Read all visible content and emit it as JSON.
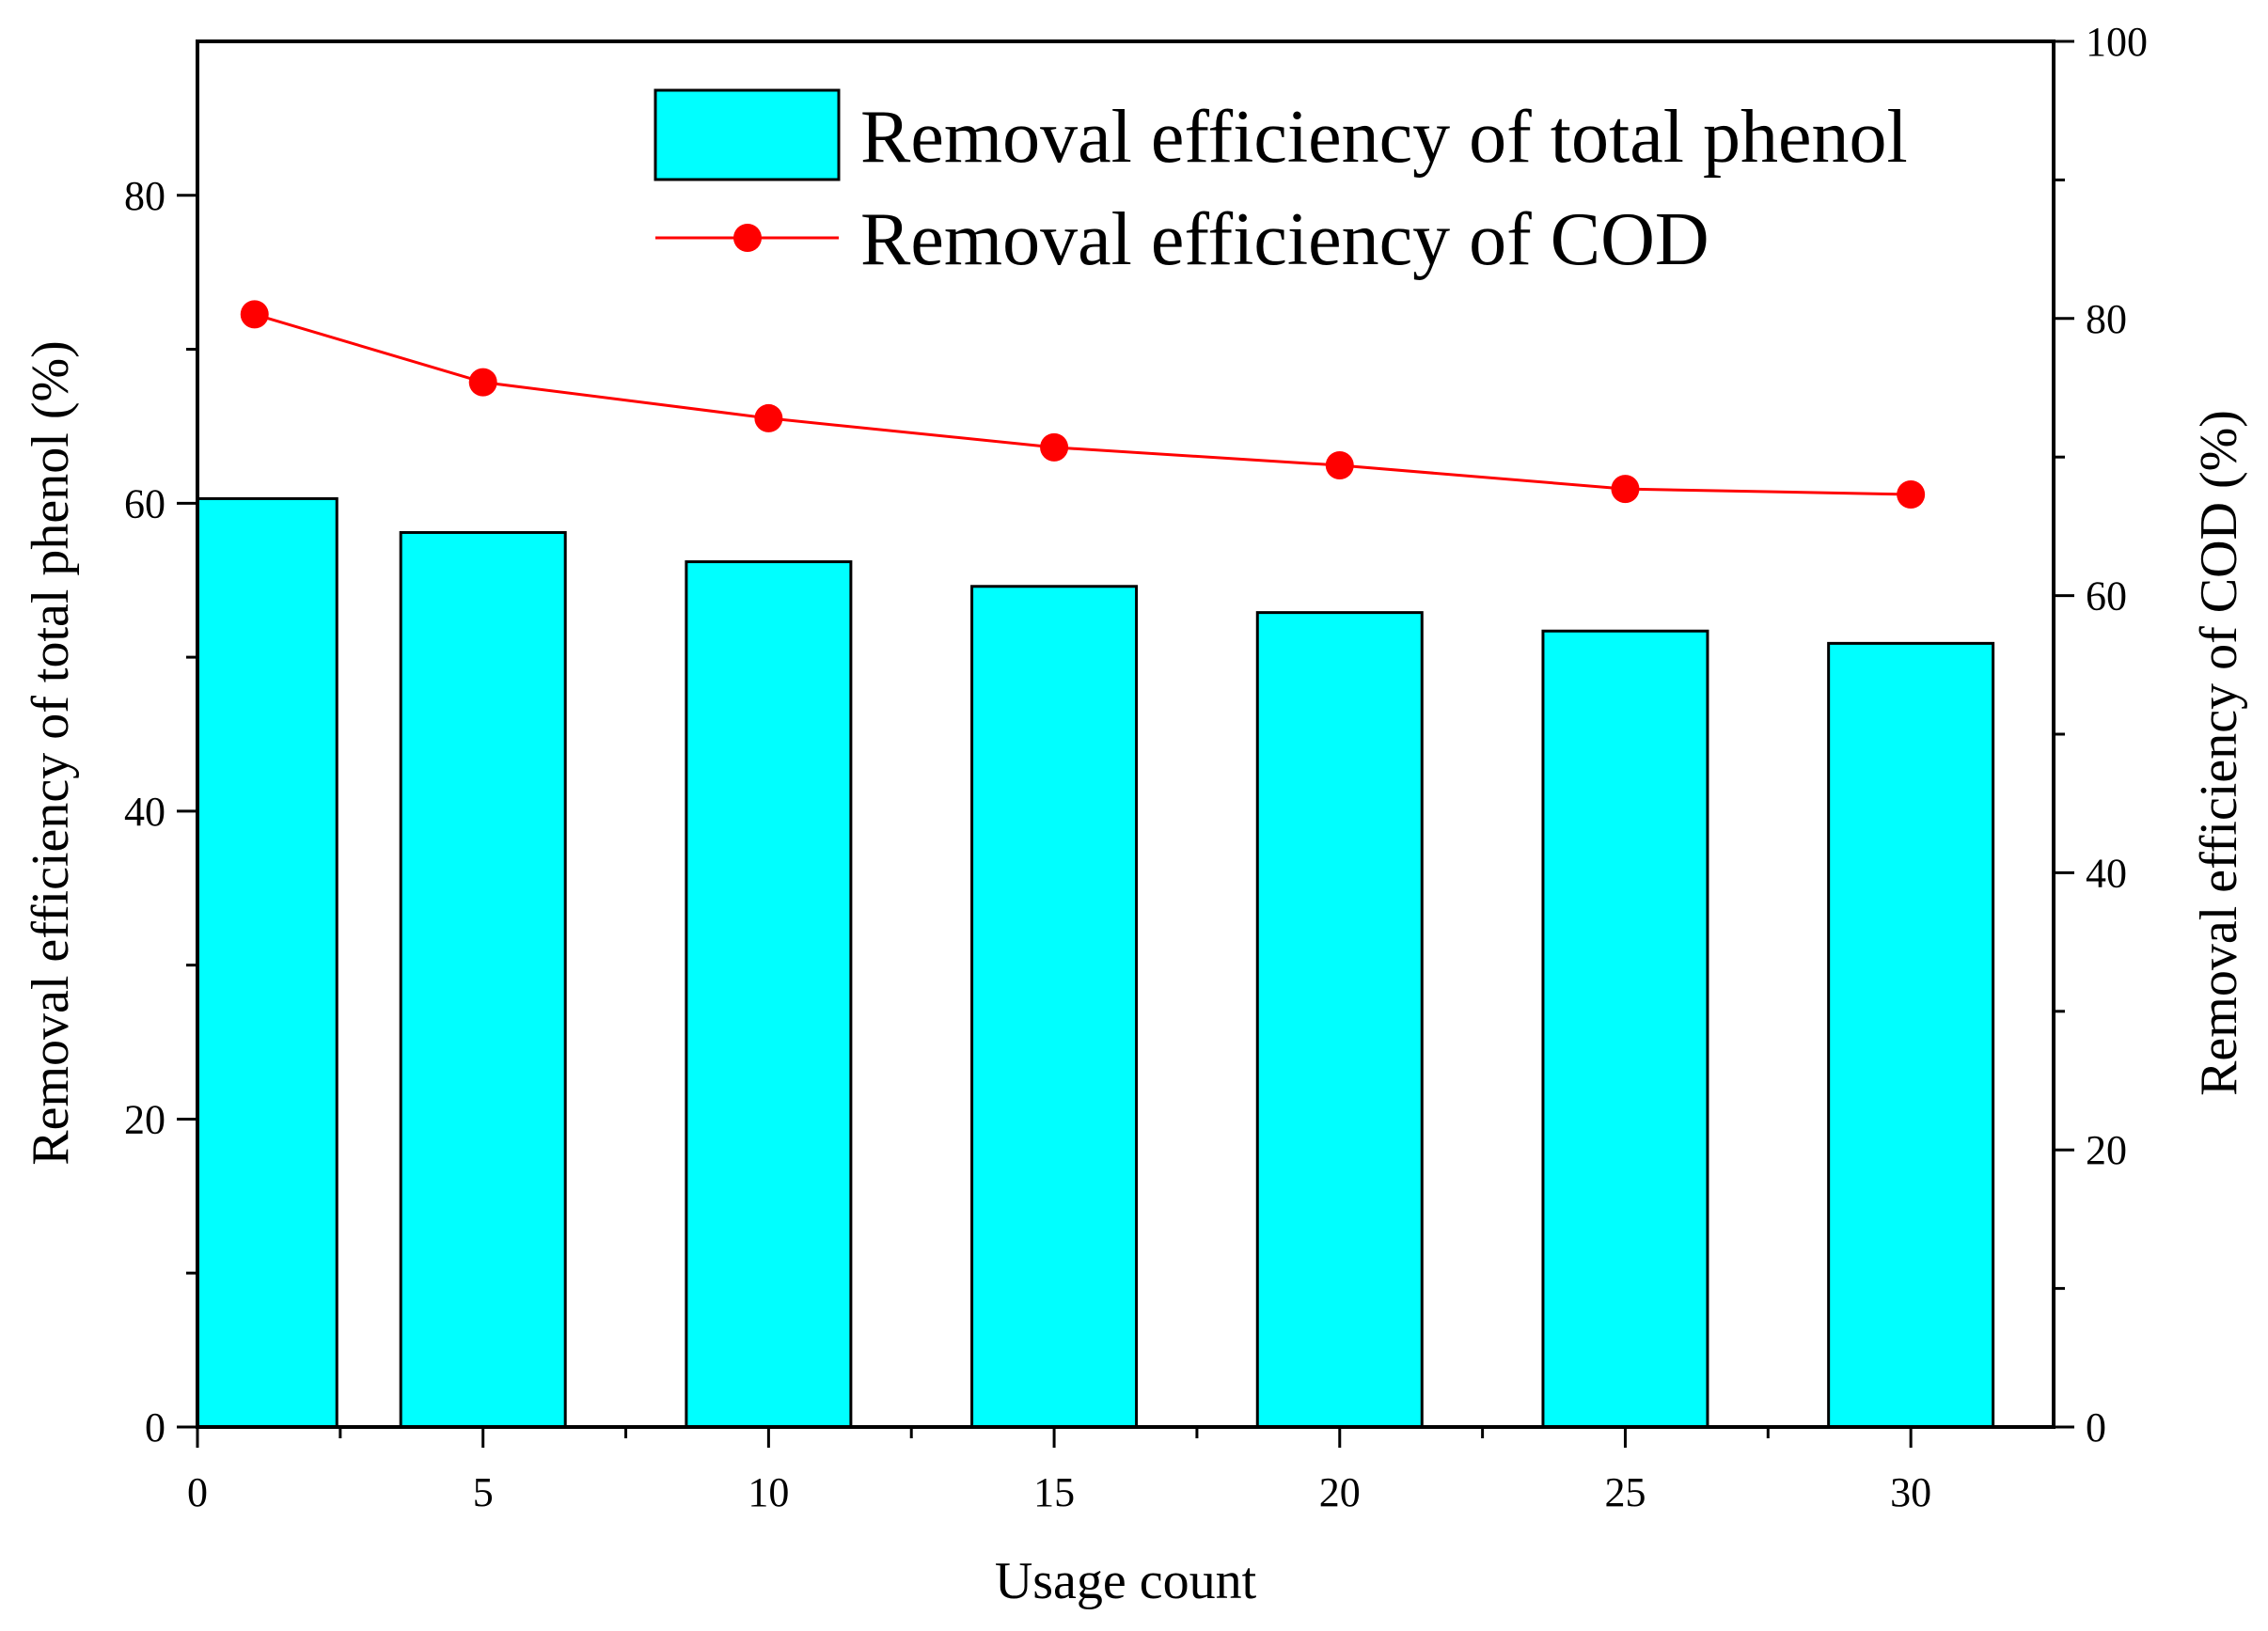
{
  "chart_data": {
    "type": "bar+line",
    "title": "",
    "xlabel": "Usage count",
    "ylabel_left": "Removal efficiency of total phenol (%)",
    "ylabel_right": "Removal efficiency of COD (%)",
    "xlim": [
      0,
      32.5
    ],
    "ylim_left": [
      0,
      90
    ],
    "ylim_right": [
      0,
      100
    ],
    "x_ticks": [
      0,
      5,
      10,
      15,
      20,
      25,
      30
    ],
    "y_left_ticks": [
      0,
      20,
      40,
      60,
      80
    ],
    "y_right_ticks": [
      0,
      20,
      40,
      60,
      80,
      100
    ],
    "legend_position": "top-right",
    "series": [
      {
        "name": "Removal efficiency of total phenol",
        "type": "bar",
        "axis": "left",
        "color": "#00ffff",
        "x": [
          1,
          5,
          10,
          15,
          20,
          25,
          30
        ],
        "values": [
          60.3,
          58.1,
          56.2,
          54.6,
          52.9,
          51.7,
          50.9
        ]
      },
      {
        "name": "Removal efficiency of COD",
        "type": "line",
        "axis": "right",
        "color": "#ff0000",
        "x": [
          1,
          5,
          10,
          15,
          20,
          25,
          30
        ],
        "values": [
          80.3,
          75.4,
          72.8,
          70.7,
          69.4,
          67.7,
          67.3
        ]
      }
    ]
  }
}
